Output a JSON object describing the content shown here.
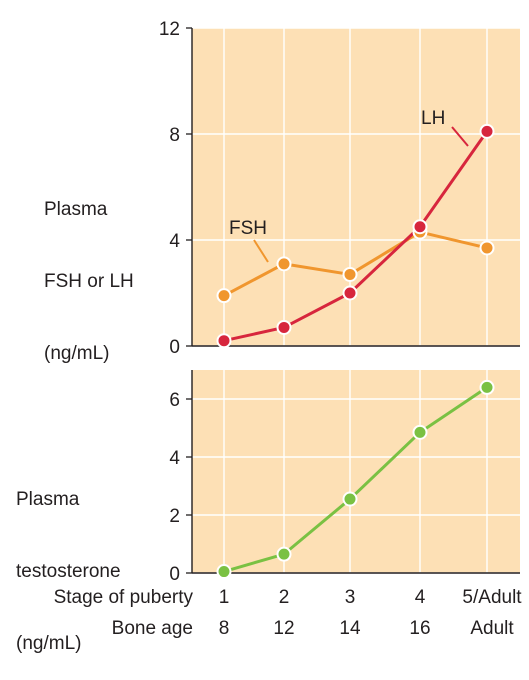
{
  "chart_data": [
    {
      "type": "line",
      "ylabel_lines": [
        "Plasma",
        "FSH or LH",
        "(ng/mL)"
      ],
      "ylim": [
        0,
        12
      ],
      "yticks": [
        0,
        4,
        8,
        12
      ],
      "x": [
        1,
        2,
        3,
        4,
        5
      ],
      "grid": true,
      "background": "#fde0b5",
      "series": [
        {
          "name": "LH",
          "color": "#d7263d",
          "values": [
            0.2,
            0.7,
            2.0,
            4.5,
            8.1
          ]
        },
        {
          "name": "FSH",
          "color": "#f0962e",
          "values": [
            1.9,
            3.1,
            2.7,
            4.3,
            3.7
          ]
        }
      ]
    },
    {
      "type": "line",
      "ylabel_lines": [
        "Plasma",
        "testosterone",
        "(ng/mL)"
      ],
      "ylim": [
        0,
        7
      ],
      "yticks": [
        0,
        2,
        4,
        6
      ],
      "x": [
        1,
        2,
        3,
        4,
        5
      ],
      "grid": true,
      "background": "#fde0b5",
      "series": [
        {
          "color": "#7ac143",
          "values": [
            0.05,
            0.65,
            2.55,
            4.85,
            6.4
          ]
        }
      ]
    }
  ],
  "x_axis": {
    "rows": [
      {
        "label": "Stage of puberty",
        "ticks": [
          "1",
          "2",
          "3",
          "4",
          "5/Adult"
        ]
      },
      {
        "label": "Bone age",
        "ticks": [
          "8",
          "12",
          "14",
          "16",
          "Adult"
        ]
      }
    ]
  }
}
